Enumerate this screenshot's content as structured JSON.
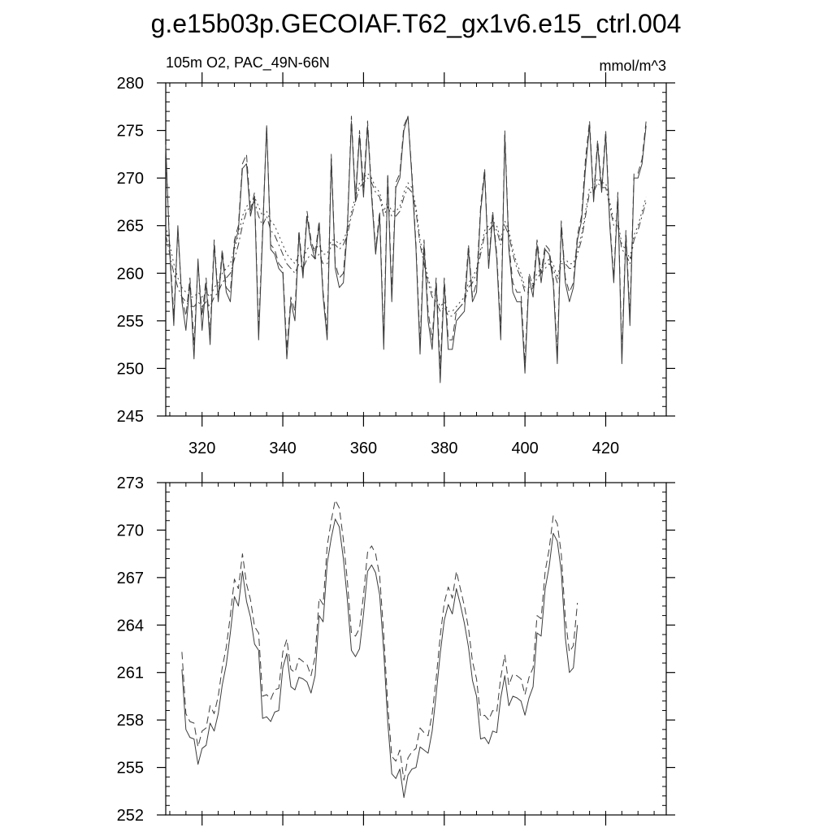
{
  "title": "g.e15b03p.GECOIAF.T62_gx1v6.e15_ctrl.004",
  "chart_data": [
    {
      "type": "line",
      "subtitle_left": "105m O2, PAC_49N-66N",
      "subtitle_right": "mmol/m^3",
      "xlim": [
        311,
        435
      ],
      "ylim": [
        245,
        280
      ],
      "x_ticks": [
        320,
        340,
        360,
        380,
        400,
        420
      ],
      "x_tick_labels": [
        "320",
        "340",
        "360",
        "380",
        "400",
        "420"
      ],
      "y_ticks": [
        245,
        250,
        255,
        260,
        265,
        270,
        275,
        280
      ],
      "y_tick_labels": [
        "245",
        "250",
        "255",
        "260",
        "265",
        "270",
        "275",
        "280"
      ],
      "grid": false,
      "x_start": 311,
      "series": [
        {
          "style": "solid",
          "values": [
            273.5,
            262,
            254.5,
            265,
            257,
            254,
            259,
            251,
            261.5,
            254,
            259,
            252.5,
            263,
            257,
            262,
            258,
            257,
            263,
            264.5,
            271,
            271.5,
            266,
            268,
            253,
            264,
            275.5,
            262.5,
            262,
            260.5,
            260,
            251,
            257,
            255,
            264,
            259.5,
            266,
            263,
            261.5,
            265,
            257.5,
            253,
            272,
            260.5,
            258.5,
            259,
            264.5,
            276,
            267.5,
            274.5,
            268,
            275.5,
            268,
            262,
            266,
            252,
            270,
            257,
            269,
            270,
            275,
            276.5,
            270,
            262.5,
            251.5,
            263,
            255,
            252,
            259,
            248.5,
            259,
            252,
            252,
            255,
            255.5,
            256,
            262.5,
            257,
            258,
            266.5,
            270.5,
            260.5,
            266,
            261.5,
            253,
            274.5,
            262.5,
            258,
            257,
            257,
            249.5,
            259.5,
            257.5,
            263,
            259,
            262.5,
            262,
            259,
            250.5,
            265,
            259,
            257,
            258.5,
            263.5,
            265.5,
            271,
            275.5,
            267.5,
            273.5,
            268.5,
            274.5,
            265,
            259,
            268,
            250.5,
            264,
            254.5,
            270,
            270,
            271.5,
            275.5
          ]
        },
        {
          "style": "dashed",
          "values": [
            273,
            262.5,
            255.5,
            264.5,
            257.5,
            255.5,
            259.5,
            252.5,
            261,
            255.5,
            259.5,
            253.5,
            263.5,
            257.5,
            262.5,
            258.5,
            258,
            263.5,
            265,
            271.5,
            272.5,
            266.5,
            268.5,
            254,
            264.5,
            275.5,
            263,
            262.5,
            261,
            260.5,
            252,
            257.5,
            256,
            264.5,
            260,
            266.5,
            263.5,
            262,
            265.5,
            258,
            254,
            272.5,
            261,
            259.5,
            260,
            265,
            276.5,
            268,
            275,
            269,
            276,
            268.5,
            262.5,
            266.5,
            253,
            270.5,
            258,
            269.5,
            270.5,
            275.5,
            276.5,
            270.5,
            263,
            252.5,
            263.5,
            256,
            253,
            259.5,
            250,
            259.5,
            253,
            253,
            256,
            256.5,
            257,
            263,
            257.5,
            259,
            267,
            271,
            261,
            266.5,
            262,
            254,
            275,
            263,
            259,
            258,
            258,
            250.5,
            260,
            258.5,
            263.5,
            260,
            263,
            262.5,
            259.5,
            251.5,
            265.5,
            259.5,
            258,
            259,
            264,
            266,
            272,
            276,
            268,
            274,
            269,
            275,
            265.5,
            259.5,
            268.5,
            251.5,
            264.5,
            255.5,
            270.5,
            270.5,
            272,
            276
          ]
        },
        {
          "style": "dashdot",
          "values": [
            264,
            262,
            260,
            258.5,
            257.5,
            257,
            256.5,
            256.5,
            257,
            256.5,
            257,
            256.5,
            257.5,
            258,
            259,
            259.5,
            260,
            261.5,
            263,
            265,
            266.5,
            267,
            267.5,
            266,
            265,
            266,
            264.5,
            264,
            263,
            262,
            261,
            260.5,
            260,
            261,
            260.5,
            261.5,
            262,
            261.5,
            262,
            261,
            261,
            263,
            263,
            262.5,
            263,
            264,
            266,
            267.5,
            269,
            269.5,
            270,
            269.5,
            268.5,
            268,
            266,
            267,
            266,
            266,
            266.5,
            268,
            269,
            268.5,
            266.5,
            263,
            261,
            259,
            257.5,
            257,
            256,
            256.5,
            255.5,
            255.5,
            256,
            256.5,
            257,
            258.5,
            259,
            260,
            262,
            264,
            264.5,
            265,
            264.5,
            263,
            265,
            264,
            262,
            260.5,
            259.5,
            258,
            258,
            258.5,
            259.5,
            260,
            260.5,
            261,
            260.5,
            259,
            261,
            261,
            260.5,
            260.5,
            262,
            263.5,
            266,
            268.5,
            268.5,
            269.5,
            269,
            269,
            267,
            265,
            265,
            262.5,
            262,
            261,
            263.5,
            264.5,
            266,
            267.5
          ]
        },
        {
          "style": "dotted",
          "values": [
            265,
            263,
            261,
            259.5,
            258.5,
            258,
            257.5,
            257.5,
            258,
            257.5,
            258,
            257.5,
            258.5,
            259,
            260,
            260.5,
            261,
            262.5,
            264,
            266,
            267,
            267.5,
            268,
            267,
            266,
            266.5,
            265.5,
            265,
            264,
            263,
            262,
            261.5,
            261,
            262,
            261.5,
            262.5,
            263,
            262.5,
            263,
            262,
            262,
            263.5,
            263.5,
            263,
            263.5,
            264.5,
            266.5,
            268,
            269.5,
            270,
            270.5,
            270,
            269,
            268.5,
            266.5,
            267.5,
            266.5,
            266.5,
            267,
            268.5,
            269.5,
            269,
            267,
            263.5,
            261.5,
            259.5,
            258,
            257.5,
            256.5,
            257,
            256,
            256,
            256.5,
            257,
            257.5,
            259,
            259.5,
            260.5,
            262.5,
            264.5,
            265,
            265.5,
            265,
            263.5,
            265.5,
            264.5,
            262.5,
            261,
            260,
            258.5,
            258.5,
            259,
            260,
            260.5,
            261,
            261.5,
            261,
            259.5,
            261.5,
            261.5,
            261,
            261,
            262.5,
            264,
            266.5,
            269,
            269,
            270,
            269.5,
            269.5,
            267.5,
            265.5,
            265.5,
            263,
            262.5,
            261.5,
            264,
            265,
            266.5,
            268
          ]
        }
      ]
    },
    {
      "type": "line",
      "xlim": [
        311,
        435
      ],
      "ylim": [
        252,
        273
      ],
      "x_ticks": [
        320,
        340,
        360,
        380,
        400,
        420
      ],
      "y_ticks": [
        252,
        255,
        258,
        261,
        264,
        267,
        270,
        273
      ],
      "y_tick_labels": [
        "252",
        "255",
        "258",
        "261",
        "264",
        "267",
        "270",
        "273"
      ],
      "grid": false,
      "x_start": 315,
      "series": [
        {
          "style": "solid",
          "values": [
            261.2,
            257.4,
            256.9,
            256.8,
            255.2,
            256.2,
            256.4,
            257.8,
            257.3,
            258.4,
            260.2,
            261.5,
            263.5,
            265.8,
            265.2,
            267.4,
            265.5,
            264.5,
            262.8,
            262.4,
            258.1,
            258.2,
            257.9,
            258.5,
            258.6,
            261.3,
            262.2,
            260.1,
            259.9,
            260.7,
            260.6,
            260.4,
            259.7,
            260.8,
            264.6,
            264.2,
            267.9,
            269.5,
            270.7,
            270.2,
            268.2,
            265.6,
            262.4,
            262.0,
            262.5,
            264.7,
            267.4,
            267.8,
            267.3,
            265.9,
            262.3,
            257.9,
            254.6,
            254.3,
            254.9,
            253.1,
            254.5,
            254.9,
            255.0,
            256.3,
            256.1,
            255.9,
            257.3,
            259.6,
            262.2,
            264.3,
            265.3,
            264.7,
            266.3,
            265.3,
            264.1,
            262.6,
            260.5,
            259.5,
            256.8,
            256.9,
            256.5,
            257.3,
            257.2,
            259.4,
            260.8,
            258.9,
            259.5,
            259.4,
            259.2,
            258.3,
            259.4,
            260.1,
            263.5,
            263.3,
            266.3,
            267.7,
            269.8,
            269.3,
            267.4,
            263.2,
            261.0,
            261.3,
            264.0
          ]
        },
        {
          "style": "dashed",
          "values": [
            262.3,
            258.4,
            257.9,
            257.8,
            256.3,
            257.3,
            257.5,
            258.9,
            258.4,
            259.5,
            261.3,
            262.6,
            264.6,
            266.9,
            266.3,
            268.5,
            266.6,
            265.6,
            263.9,
            263.5,
            259.5,
            259.6,
            259.3,
            259.9,
            260.0,
            262.3,
            263.1,
            261.2,
            261.0,
            261.9,
            261.7,
            261.5,
            260.8,
            262.0,
            265.7,
            265.3,
            269.0,
            270.6,
            271.9,
            271.4,
            269.4,
            266.8,
            263.5,
            263.3,
            263.8,
            265.9,
            268.6,
            269.0,
            268.5,
            267.1,
            263.4,
            259.0,
            255.7,
            255.4,
            256.1,
            254.2,
            255.6,
            256.0,
            256.2,
            257.5,
            257.2,
            257.0,
            258.4,
            260.6,
            263.3,
            265.4,
            266.4,
            265.7,
            267.4,
            266.3,
            265.2,
            263.8,
            261.7,
            260.6,
            258.2,
            258.3,
            258.0,
            258.6,
            258.5,
            260.7,
            262.1,
            260.2,
            260.9,
            260.8,
            260.6,
            259.6,
            260.7,
            261.3,
            264.6,
            264.4,
            267.4,
            268.8,
            270.9,
            270.4,
            268.5,
            264.4,
            262.3,
            262.7,
            265.4
          ]
        }
      ]
    }
  ]
}
